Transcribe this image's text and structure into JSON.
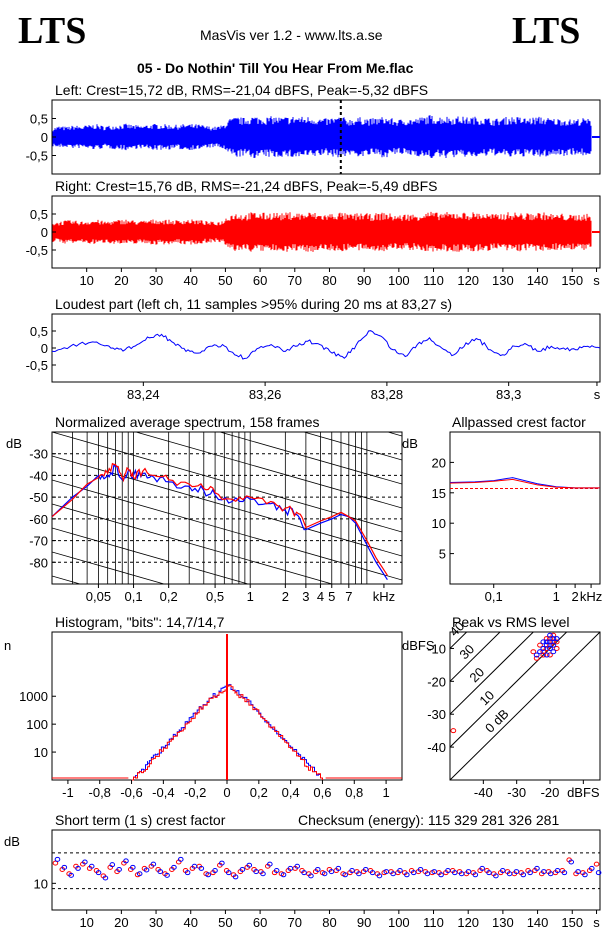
{
  "header": {
    "logo_left": "LTS",
    "logo_right": "LTS",
    "app_title": "MasVis ver 1.2 - www.lts.a.se",
    "track_title": "05 - Do Nothin' Till You Hear From Me.flac"
  },
  "labels": {
    "checksum": "Checksum (energy):   115 329 281 326 281"
  },
  "chart_data": [
    {
      "id": "left",
      "type": "line",
      "title": "Left: Crest=15,72 dB, RMS=-21,04 dBFS, Peak=-5,32 dBFS",
      "color": "#0000ff",
      "ylim": [
        -1,
        1
      ],
      "yticks": [
        "0,5",
        "0",
        "-0,5"
      ],
      "ytick_values": [
        0.5,
        0,
        -0.5
      ],
      "xlim": [
        0,
        158
      ],
      "marker_x": 83.27,
      "envelope": [
        0.25,
        0.3,
        0.28,
        0.32,
        0.3,
        0.33,
        0.35,
        0.3,
        0.32,
        0.34,
        0.36,
        0.33,
        0.31,
        0.34,
        0.36,
        0.35,
        0.34,
        0.33,
        0.36,
        0.35,
        0.34,
        0.3,
        0.28,
        0.32,
        0.5,
        0.55,
        0.52,
        0.58,
        0.56,
        0.55,
        0.57,
        0.54,
        0.56,
        0.58,
        0.55,
        0.57,
        0.52,
        0.5,
        0.54,
        0.56,
        0.5,
        0.52,
        0.55,
        0.5,
        0.53,
        0.56,
        0.5,
        0.48,
        0.52,
        0.5,
        0.55,
        0.6,
        0.56,
        0.58,
        0.55,
        0.57,
        0.54,
        0.56,
        0.55,
        0.52,
        0.5,
        0.54,
        0.56,
        0.55,
        0.52,
        0.54,
        0.56,
        0.53,
        0.5,
        0.52,
        0.48,
        0.5,
        0.52,
        0.46,
        0.4
      ]
    },
    {
      "id": "right",
      "type": "line",
      "title": "Right: Crest=15,76 dB, RMS=-21,24 dBFS, Peak=-5,49 dBFS",
      "color": "#ff0000",
      "ylim": [
        -1,
        1
      ],
      "yticks": [
        "0,5",
        "0",
        "-0,5"
      ],
      "ytick_values": [
        0.5,
        0,
        -0.5
      ],
      "xlim": [
        0,
        158
      ],
      "xticks": [
        "10",
        "20",
        "30",
        "40",
        "50",
        "60",
        "70",
        "80",
        "90",
        "100",
        "110",
        "120",
        "130",
        "140",
        "150",
        "s"
      ],
      "xtick_values": [
        10,
        20,
        30,
        40,
        50,
        60,
        70,
        80,
        90,
        100,
        110,
        120,
        130,
        140,
        150,
        157
      ],
      "envelope": [
        0.28,
        0.3,
        0.33,
        0.32,
        0.3,
        0.33,
        0.35,
        0.3,
        0.32,
        0.34,
        0.36,
        0.33,
        0.31,
        0.34,
        0.36,
        0.35,
        0.34,
        0.33,
        0.36,
        0.35,
        0.34,
        0.3,
        0.28,
        0.32,
        0.52,
        0.55,
        0.5,
        0.56,
        0.55,
        0.53,
        0.57,
        0.52,
        0.56,
        0.55,
        0.53,
        0.57,
        0.52,
        0.5,
        0.54,
        0.56,
        0.5,
        0.52,
        0.55,
        0.5,
        0.53,
        0.56,
        0.5,
        0.48,
        0.52,
        0.5,
        0.55,
        0.58,
        0.54,
        0.56,
        0.55,
        0.57,
        0.54,
        0.56,
        0.55,
        0.52,
        0.5,
        0.54,
        0.56,
        0.55,
        0.52,
        0.54,
        0.56,
        0.53,
        0.5,
        0.52,
        0.48,
        0.5,
        0.52,
        0.46,
        0.42
      ]
    },
    {
      "id": "loudest",
      "type": "line",
      "title": "Loudest part (left  ch, 11 samples >95% during 20 ms at 83,27 s)",
      "color": "#0000ff",
      "ylim": [
        -1,
        1
      ],
      "yticks": [
        "0,5",
        "0",
        "-0,5"
      ],
      "ytick_values": [
        0.5,
        0,
        -0.5
      ],
      "xlim": [
        83.225,
        83.315
      ],
      "xticks": [
        "83,24",
        "83,26",
        "83,28",
        "83,3",
        "s"
      ],
      "xtick_values": [
        83.24,
        83.26,
        83.28,
        83.3,
        83.3145
      ],
      "x": [
        83.225,
        83.228,
        83.231,
        83.233,
        83.235,
        83.237,
        83.239,
        83.241,
        83.243,
        83.245,
        83.247,
        83.249,
        83.251,
        83.253,
        83.255,
        83.257,
        83.259,
        83.261,
        83.263,
        83.265,
        83.267,
        83.269,
        83.271,
        83.273,
        83.275,
        83.277,
        83.279,
        83.281,
        83.283,
        83.285,
        83.287,
        83.289,
        83.291,
        83.293,
        83.295,
        83.297,
        83.299,
        83.301,
        83.303,
        83.305,
        83.307,
        83.309,
        83.311,
        83.313,
        83.315
      ],
      "y": [
        -0.1,
        0.05,
        0.15,
        0.1,
        0.0,
        -0.05,
        0.1,
        0.3,
        0.4,
        0.15,
        -0.1,
        -0.15,
        0.05,
        0.1,
        -0.2,
        -0.3,
        0.0,
        0.1,
        -0.1,
        0.05,
        0.2,
        0.1,
        -0.15,
        -0.3,
        0.1,
        0.5,
        0.35,
        -0.05,
        -0.25,
        0.1,
        0.3,
        0.0,
        -0.2,
        0.15,
        0.25,
        -0.05,
        -0.2,
        0.05,
        0.1,
        -0.1,
        0.05,
        0.0,
        -0.05,
        0.05,
        0.0
      ]
    },
    {
      "id": "spectrum",
      "type": "line",
      "title": "Normalized average spectrum, 158 frames",
      "ylabel": "dB",
      "xscale": "log",
      "xlim": [
        0.02,
        20
      ],
      "ylim": [
        -90,
        -20
      ],
      "yticks": [
        "-30",
        "-40",
        "-50",
        "-60",
        "-70",
        "-80"
      ],
      "ytick_values": [
        -30,
        -40,
        -50,
        -60,
        -70,
        -80
      ],
      "xticks": [
        "0,05",
        "0,1",
        "0,2",
        "0,5",
        "1",
        "2",
        "3",
        "4",
        "5",
        "7",
        "kHz"
      ],
      "xtick_values": [
        0.05,
        0.1,
        0.2,
        0.5,
        1,
        2,
        3,
        4,
        5,
        7,
        14
      ],
      "series": [
        {
          "color": "#0000ff",
          "x": [
            0.02,
            0.03,
            0.04,
            0.05,
            0.06,
            0.07,
            0.08,
            0.09,
            0.1,
            0.12,
            0.15,
            0.2,
            0.3,
            0.4,
            0.5,
            0.7,
            1,
            1.5,
            2,
            2.5,
            3,
            4,
            5,
            6,
            7,
            8,
            10,
            12,
            15
          ],
          "y": [
            -59,
            -50,
            -45,
            -40,
            -40,
            -36,
            -42,
            -38,
            -40,
            -39,
            -41,
            -43,
            -45,
            -47,
            -49,
            -52,
            -51,
            -53,
            -56,
            -58,
            -65,
            -62,
            -60,
            -58,
            -59,
            -62,
            -72,
            -80,
            -88
          ]
        },
        {
          "color": "#ff0000",
          "x": [
            0.02,
            0.03,
            0.04,
            0.05,
            0.06,
            0.07,
            0.08,
            0.09,
            0.1,
            0.12,
            0.15,
            0.2,
            0.3,
            0.4,
            0.5,
            0.7,
            1,
            1.5,
            2,
            2.5,
            3,
            4,
            5,
            6,
            7,
            8,
            10,
            12,
            15
          ],
          "y": [
            -59,
            -51,
            -44,
            -41,
            -39,
            -35,
            -41,
            -37,
            -41,
            -38,
            -40,
            -42,
            -44,
            -46,
            -48,
            -51,
            -50,
            -52,
            -55,
            -57,
            -64,
            -61,
            -59,
            -57,
            -59,
            -61,
            -70,
            -78,
            -86
          ]
        }
      ]
    },
    {
      "id": "allpassed",
      "type": "line",
      "title": "Allpassed crest factor",
      "ylabel": "dB",
      "xscale": "log",
      "xlim": [
        0.02,
        5
      ],
      "ylim": [
        0,
        25
      ],
      "yticks": [
        "20",
        "15",
        "10",
        "5"
      ],
      "ytick_values": [
        20,
        15,
        10,
        5
      ],
      "xticks": [
        "0,1",
        "1",
        "2",
        "kHz"
      ],
      "xtick_values": [
        0.1,
        1,
        2,
        3.6
      ],
      "reference": 15.7,
      "series": [
        {
          "color": "#0000ff",
          "x": [
            0.02,
            0.05,
            0.1,
            0.2,
            0.5,
            1,
            2,
            5
          ],
          "y": [
            16.7,
            16.8,
            17.0,
            17.5,
            16.5,
            16.0,
            15.8,
            15.8
          ]
        },
        {
          "color": "#ff0000",
          "x": [
            0.02,
            0.05,
            0.1,
            0.2,
            0.5,
            1,
            2,
            5
          ],
          "y": [
            16.6,
            16.7,
            16.9,
            17.2,
            16.3,
            15.9,
            15.8,
            15.8
          ]
        }
      ]
    },
    {
      "id": "histogram",
      "type": "line",
      "title": "Histogram, \"bits\": 14,7/14,7",
      "ylabel": "n",
      "yscale": "log",
      "xlim": [
        -1.1,
        1.1
      ],
      "ylim": [
        1,
        200000
      ],
      "yticks": [
        "1000",
        "100",
        "10"
      ],
      "ytick_values": [
        1000,
        100,
        10
      ],
      "xticks": [
        "-1",
        "-0,8",
        "-0,6",
        "-0,4",
        "-0,2",
        "0",
        "0,2",
        "0,4",
        "0,6",
        "0,8",
        "1"
      ],
      "xtick_values": [
        -1,
        -0.8,
        -0.6,
        -0.4,
        -0.2,
        0,
        0.2,
        0.4,
        0.6,
        0.8,
        1
      ],
      "series": [
        {
          "color": "#0000ff",
          "x": [
            -0.6,
            -0.55,
            -0.5,
            -0.45,
            -0.4,
            -0.35,
            -0.3,
            -0.25,
            -0.2,
            -0.15,
            -0.1,
            -0.05,
            0,
            0.05,
            0.1,
            0.15,
            0.2,
            0.25,
            0.3,
            0.35,
            0.4,
            0.45,
            0.5,
            0.55,
            0.6
          ],
          "y": [
            1,
            2,
            4,
            8,
            15,
            30,
            60,
            120,
            250,
            500,
            900,
            1500,
            2500,
            1500,
            900,
            500,
            250,
            120,
            60,
            30,
            15,
            8,
            4,
            2,
            1
          ]
        },
        {
          "color": "#ff0000",
          "x": [
            -0.6,
            -0.55,
            -0.5,
            -0.45,
            -0.4,
            -0.35,
            -0.3,
            -0.25,
            -0.2,
            -0.15,
            -0.1,
            -0.05,
            0,
            0.05,
            0.1,
            0.15,
            0.2,
            0.25,
            0.3,
            0.35,
            0.4,
            0.45,
            0.5,
            0.55,
            0.6
          ],
          "y": [
            1,
            2,
            3,
            7,
            14,
            28,
            55,
            110,
            230,
            480,
            850,
            1400,
            2300,
            1400,
            850,
            480,
            230,
            110,
            55,
            28,
            14,
            7,
            3,
            2,
            1
          ]
        }
      ],
      "spike_x": 0
    },
    {
      "id": "peakrms",
      "type": "scatter",
      "title": "Peak vs RMS level",
      "ylabel": "dBFS",
      "xlabel": "dBFS",
      "xlim": [
        -50,
        -5
      ],
      "ylim": [
        -50,
        -5
      ],
      "yticks": [
        "-10",
        "-20",
        "-30",
        "-40"
      ],
      "ytick_values": [
        -10,
        -20,
        -30,
        -40
      ],
      "xticks": [
        "-40",
        "-30",
        "-20",
        "dBFS"
      ],
      "xtick_values": [
        -40,
        -30,
        -20,
        -10
      ],
      "diagonal_labels": [
        "40",
        "30",
        "20",
        "10",
        "0 dB"
      ],
      "diagonal_offsets": [
        40,
        30,
        20,
        10,
        0
      ],
      "points_left": [
        [
          -21,
          -9
        ],
        [
          -20,
          -8
        ],
        [
          -19,
          -7
        ],
        [
          -22,
          -10
        ],
        [
          -20,
          -10
        ],
        [
          -19,
          -9
        ],
        [
          -23,
          -11
        ],
        [
          -21,
          -12
        ],
        [
          -18,
          -7
        ],
        [
          -20,
          -6
        ],
        [
          -22,
          -8
        ],
        [
          -24,
          -12
        ],
        [
          -19,
          -11
        ],
        [
          -21,
          -8
        ]
      ],
      "points_right": [
        [
          -21,
          -10
        ],
        [
          -20,
          -9
        ],
        [
          -19,
          -8
        ],
        [
          -22,
          -11
        ],
        [
          -23,
          -9
        ],
        [
          -18,
          -8
        ],
        [
          -24,
          -13
        ],
        [
          -20,
          -12
        ],
        [
          -19,
          -6
        ],
        [
          -21,
          -7
        ],
        [
          -22,
          -12
        ],
        [
          -25,
          -11
        ],
        [
          -18,
          -10
        ],
        [
          -20,
          -7
        ],
        [
          -49,
          -35
        ]
      ]
    },
    {
      "id": "shortcrest",
      "type": "scatter",
      "title": "Short term (1 s) crest factor",
      "ylabel": "dB",
      "xlim": [
        0,
        158
      ],
      "ylim": [
        5,
        20
      ],
      "yticks": [
        "10"
      ],
      "ytick_values": [
        10
      ],
      "ref_lines": [
        15.7,
        9.0
      ],
      "xticks": [
        "10",
        "20",
        "30",
        "40",
        "50",
        "60",
        "70",
        "80",
        "90",
        "100",
        "110",
        "120",
        "130",
        "140",
        "150",
        "s"
      ],
      "xtick_values": [
        10,
        20,
        30,
        40,
        50,
        60,
        70,
        80,
        90,
        100,
        110,
        120,
        130,
        140,
        150,
        157
      ],
      "left": [
        14.5,
        13.0,
        11.5,
        12.8,
        14.0,
        13.2,
        12.0,
        11.0,
        13.5,
        12.6,
        14.2,
        13.0,
        11.8,
        12.5,
        13.6,
        12.2,
        11.5,
        13.0,
        14.5,
        12.0,
        13.2,
        12.8,
        11.6,
        12.4,
        13.8,
        12.0,
        11.2,
        12.6,
        13.4,
        12.2,
        11.8,
        13.6,
        12.4,
        11.6,
        12.8,
        13.2,
        12.0,
        11.4,
        12.6,
        11.8,
        12.2,
        12.8,
        11.6,
        12.4,
        11.8,
        12.6,
        12.0,
        11.4,
        12.2,
        11.8,
        12.4,
        11.6,
        12.0,
        12.6,
        11.8,
        12.2,
        11.6,
        12.4,
        12.0,
        11.8,
        12.2,
        11.6,
        12.8,
        12.0,
        11.4,
        12.4,
        11.8,
        12.2,
        11.6,
        12.0,
        12.8,
        12.2,
        11.8,
        12.4,
        12.0,
        14.0,
        12.2,
        11.6,
        12.8,
        12.0
      ],
      "right": [
        13.8,
        12.6,
        11.8,
        13.2,
        13.6,
        12.8,
        12.4,
        11.4,
        13.0,
        12.2,
        13.8,
        12.6,
        11.6,
        12.8,
        13.2,
        12.6,
        11.8,
        12.6,
        14.0,
        12.4,
        12.8,
        13.2,
        11.8,
        12.0,
        13.4,
        12.4,
        11.6,
        12.2,
        13.0,
        12.6,
        12.2,
        13.2,
        12.0,
        11.8,
        12.4,
        12.8,
        12.4,
        11.8,
        12.2,
        12.0,
        12.6,
        12.4,
        11.8,
        12.0,
        12.2,
        12.2,
        12.4,
        11.8,
        12.0,
        12.2,
        12.0,
        12.0,
        12.4,
        12.2,
        12.2,
        12.0,
        12.0,
        12.0,
        12.4,
        12.2,
        11.8,
        12.0,
        12.4,
        12.4,
        11.8,
        12.0,
        12.2,
        11.8,
        12.0,
        12.4,
        12.4,
        11.8,
        12.2,
        12.0,
        12.4,
        14.4,
        11.8,
        12.0,
        12.4,
        13.6
      ]
    }
  ]
}
